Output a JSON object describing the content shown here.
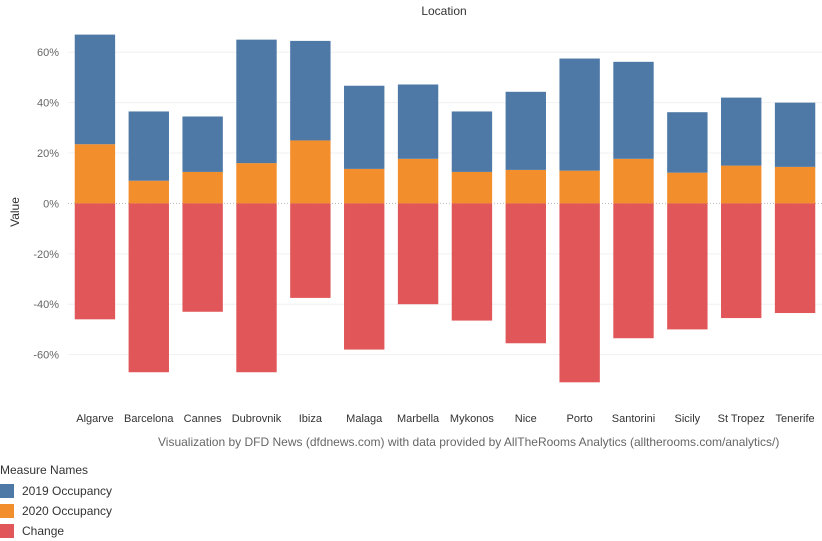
{
  "chart_data": {
    "type": "bar",
    "title": "Location",
    "ylabel": "Value",
    "ylim": [
      -80,
      72
    ],
    "yticks": [
      60,
      40,
      20,
      0,
      -20,
      -40,
      -60
    ],
    "ytick_labels": [
      "60%",
      "40%",
      "20%",
      "0%",
      "-20%",
      "-40%",
      "-60%"
    ],
    "categories": [
      "Algarve",
      "Barcelona",
      "Cannes",
      "Dubrovnik",
      "Ibiza",
      "Malaga",
      "Marbella",
      "Mykonos",
      "Nice",
      "Porto",
      "Santorini",
      "Sicily",
      "St Tropez",
      "Tenerife"
    ],
    "series": [
      {
        "name": "2019 Occupancy",
        "color": "#4e79a7",
        "values": [
          43.5,
          27.5,
          22.0,
          49.0,
          39.5,
          33.0,
          29.5,
          24.0,
          31.0,
          44.5,
          38.5,
          24.0,
          27.0,
          25.5
        ]
      },
      {
        "name": "2020 Occupancy",
        "color": "#f28e2b",
        "values": [
          23.5,
          9.0,
          12.5,
          16.0,
          25.0,
          13.7,
          17.7,
          12.5,
          13.3,
          13.0,
          17.7,
          12.2,
          15.0,
          14.5
        ]
      },
      {
        "name": "Change",
        "color": "#e15759",
        "values": [
          -46.0,
          -67.0,
          -43.0,
          -67.0,
          -37.5,
          -58.0,
          -40.0,
          -46.5,
          -55.5,
          -71.0,
          -53.5,
          -50.0,
          -45.5,
          -43.5
        ]
      }
    ],
    "grid": true,
    "legend_position": "bottom-left"
  },
  "caption": "Visualization by DFD News (dfdnews.com) with data provided by AllTheRooms Analytics (alltherooms.com/analytics/)",
  "legend": {
    "title": "Measure Names",
    "items": [
      {
        "label": "2019 Occupancy",
        "color": "#4e79a7"
      },
      {
        "label": "2020 Occupancy",
        "color": "#f28e2b"
      },
      {
        "label": "Change",
        "color": "#e15759"
      }
    ]
  }
}
